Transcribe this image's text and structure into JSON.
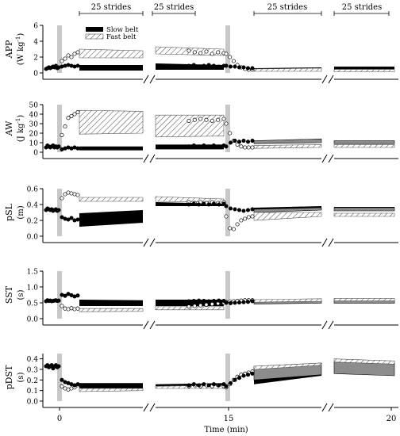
{
  "chart_data": {
    "type": "scatter",
    "xlabel": "Time (min)",
    "x_ticks": [
      {
        "label": "0",
        "value": 0
      },
      {
        "label": "15",
        "value": 15
      },
      {
        "label": "20",
        "value": 20
      }
    ],
    "stride_labels": [
      "25 strides",
      "25 strides",
      "25 strides",
      "25 strides"
    ],
    "legend": {
      "position": "inside first panel, top",
      "entries": [
        {
          "label": "Slow belt",
          "style": "solid black"
        },
        {
          "label": "Fast belt",
          "style": "hatched"
        }
      ]
    },
    "colors": {
      "slow": "#000000",
      "fast_hatch": "#444444",
      "gray_band": "#8c8c8c",
      "split_marker": "#c8c8c8"
    },
    "panels": [
      {
        "id": "app",
        "ylabel": "APP",
        "yunit": "(W kg",
        "yunit_sup": "-1",
        "yunit_close": ")",
        "ylim": [
          0,
          6
        ],
        "yticks": [
          0,
          2,
          4,
          6
        ],
        "tick_labels": [
          "0",
          "2",
          "4",
          "6"
        ],
        "pre_slow": [
          0.5,
          0.6,
          0.7,
          0.6,
          0.7,
          0.8,
          0.7,
          0.9,
          0.6,
          0.7
        ],
        "early_slow": [
          0.8,
          0.9,
          1.0,
          0.9,
          0.8,
          0.9
        ],
        "early_fast": [
          1.5,
          1.8,
          2.2,
          2.0,
          2.4,
          2.6
        ],
        "mid_slow": [
          0.9,
          1.0,
          0.8,
          0.9,
          1.0,
          0.9,
          0.8,
          0.9
        ],
        "mid_fast": [
          2.8,
          2.6,
          2.5,
          2.7,
          2.4,
          2.6,
          2.5
        ],
        "post_slow": [
          0.9,
          0.8,
          0.8,
          0.7,
          0.7,
          0.6,
          0.6
        ],
        "post_fast": [
          2.4,
          2.0,
          1.5,
          1.0,
          0.7,
          0.5,
          0.4,
          0.4
        ],
        "bands": [
          {
            "seg": 1,
            "type": "slow",
            "y0": [
              0.3,
              0.3
            ],
            "y1": [
              1.0,
              1.0
            ]
          },
          {
            "seg": 1,
            "type": "fast",
            "y0": [
              1.9,
              1.9
            ],
            "y1": [
              3.0,
              2.8
            ]
          },
          {
            "seg": 2,
            "type": "slow",
            "y0": [
              0.4,
              0.4
            ],
            "y1": [
              1.2,
              1.0
            ]
          },
          {
            "seg": 2,
            "type": "fast",
            "y0": [
              2.4,
              2.2
            ],
            "y1": [
              3.3,
              3.0
            ]
          },
          {
            "seg": 3,
            "type": "slow",
            "y0": [
              0.3,
              0.3
            ],
            "y1": [
              0.6,
              0.7
            ]
          },
          {
            "seg": 3,
            "type": "fast",
            "y0": [
              0.2,
              0.2
            ],
            "y1": [
              0.5,
              0.6
            ]
          },
          {
            "seg": 4,
            "type": "slow",
            "y0": [
              0.35,
              0.35
            ],
            "y1": [
              0.8,
              0.8
            ]
          },
          {
            "seg": 4,
            "type": "fast",
            "y0": [
              0.15,
              0.15
            ],
            "y1": [
              0.45,
              0.45
            ]
          }
        ]
      },
      {
        "id": "aw",
        "ylabel": "AW",
        "yunit": "(J kg",
        "yunit_sup": "-1",
        "yunit_close": ")",
        "ylim": [
          0,
          50
        ],
        "yticks": [
          0,
          10,
          20,
          30,
          40,
          50
        ],
        "tick_labels": [
          "0",
          "10",
          "20",
          "30",
          "40",
          "50"
        ],
        "pre_slow": [
          5,
          7,
          6,
          5,
          6,
          7,
          5,
          6,
          5,
          6
        ],
        "early_slow": [
          3,
          4,
          5,
          4,
          5,
          4
        ],
        "early_fast": [
          18,
          27,
          36,
          38,
          40,
          42
        ],
        "mid_slow": [
          6,
          7,
          6,
          7,
          6,
          7,
          6,
          7
        ],
        "mid_fast": [
          33,
          34,
          35,
          34,
          33,
          34,
          35
        ],
        "post_slow": [
          6,
          10,
          12,
          11,
          12,
          11,
          12
        ],
        "post_fast": [
          30,
          20,
          12,
          8,
          6,
          5,
          5,
          5
        ],
        "bands": [
          {
            "seg": 1,
            "type": "slow",
            "y0": [
              2,
              2
            ],
            "y1": [
              6,
              6
            ]
          },
          {
            "seg": 1,
            "type": "fast",
            "y0": [
              19,
              20
            ],
            "y1": [
              44,
              43
            ]
          },
          {
            "seg": 2,
            "type": "slow",
            "y0": [
              3,
              3
            ],
            "y1": [
              8,
              8
            ]
          },
          {
            "seg": 2,
            "type": "fast",
            "y0": [
              16,
              17
            ],
            "y1": [
              39,
              39
            ]
          },
          {
            "seg": 3,
            "type": "gray",
            "y0": [
              9,
              10
            ],
            "y1": [
              12,
              14
            ]
          },
          {
            "seg": 3,
            "type": "fast",
            "y0": [
              4,
              5
            ],
            "y1": [
              7,
              8
            ]
          },
          {
            "seg": 4,
            "type": "gray",
            "y0": [
              9,
              9
            ],
            "y1": [
              12,
              12
            ]
          },
          {
            "seg": 4,
            "type": "fast",
            "y0": [
              5,
              5
            ],
            "y1": [
              8,
              8
            ]
          }
        ]
      },
      {
        "id": "psl",
        "ylabel": "pSL",
        "yunit": "(m)",
        "yunit_sup": "",
        "yunit_close": "",
        "ylim": [
          0,
          0.6
        ],
        "yticks": [
          0,
          0.2,
          0.4,
          0.6
        ],
        "tick_labels": [
          "0.0",
          "0.2",
          "0.4",
          "0.6"
        ],
        "pre_slow": [
          0.33,
          0.35,
          0.34,
          0.33,
          0.34,
          0.32,
          0.33,
          0.34,
          0.32,
          0.33
        ],
        "early_slow": [
          0.24,
          0.22,
          0.21,
          0.23,
          0.2,
          0.21
        ],
        "early_fast": [
          0.48,
          0.53,
          0.55,
          0.54,
          0.53,
          0.52
        ],
        "mid_slow": [
          0.4,
          0.41,
          0.4,
          0.41,
          0.4,
          0.41,
          0.4,
          0.41
        ],
        "mid_fast": [
          0.43,
          0.42,
          0.43,
          0.42,
          0.43,
          0.42,
          0.43
        ],
        "post_slow": [
          0.38,
          0.35,
          0.34,
          0.33,
          0.32,
          0.33,
          0.34
        ],
        "post_fast": [
          0.25,
          0.1,
          0.09,
          0.15,
          0.2,
          0.22,
          0.24,
          0.25
        ],
        "bands": [
          {
            "seg": 1,
            "type": "slow",
            "y0": [
              0.12,
              0.17
            ],
            "y1": [
              0.29,
              0.33
            ]
          },
          {
            "seg": 1,
            "type": "fast",
            "y0": [
              0.44,
              0.44
            ],
            "y1": [
              0.49,
              0.49
            ]
          },
          {
            "seg": 2,
            "type": "slow",
            "y0": [
              0.38,
              0.38
            ],
            "y1": [
              0.43,
              0.41
            ]
          },
          {
            "seg": 2,
            "type": "fast",
            "y0": [
              0.44,
              0.43
            ],
            "y1": [
              0.5,
              0.47
            ]
          },
          {
            "seg": 3,
            "type": "slow",
            "y0": [
              0.33,
              0.35
            ],
            "y1": [
              0.36,
              0.38
            ]
          },
          {
            "seg": 3,
            "type": "gray",
            "y0": [
              0.3,
              0.33
            ],
            "y1": [
              0.34,
              0.36
            ]
          },
          {
            "seg": 3,
            "type": "fast",
            "y0": [
              0.2,
              0.25
            ],
            "y1": [
              0.3,
              0.3
            ]
          },
          {
            "seg": 4,
            "type": "slow",
            "y0": [
              0.34,
              0.34
            ],
            "y1": [
              0.37,
              0.37
            ]
          },
          {
            "seg": 4,
            "type": "gray",
            "y0": [
              0.32,
              0.32
            ],
            "y1": [
              0.36,
              0.36
            ]
          },
          {
            "seg": 4,
            "type": "fast",
            "y0": [
              0.25,
              0.25
            ],
            "y1": [
              0.29,
              0.29
            ]
          }
        ]
      },
      {
        "id": "sst",
        "ylabel": "SST",
        "yunit": "(s)",
        "yunit_sup": "",
        "yunit_close": "",
        "ylim": [
          0,
          1.5
        ],
        "yticks": [
          0,
          0.5,
          1.0,
          1.5
        ],
        "tick_labels": [
          "0.0",
          "0.5",
          "1.0",
          "1.5"
        ],
        "pre_slow": [
          0.55,
          0.58,
          0.56,
          0.57,
          0.55,
          0.56,
          0.57,
          0.58,
          0.56,
          0.57
        ],
        "early_slow": [
          0.75,
          0.72,
          0.78,
          0.74,
          0.7,
          0.73
        ],
        "early_fast": [
          0.4,
          0.32,
          0.3,
          0.33,
          0.3,
          0.32
        ],
        "mid_slow": [
          0.55,
          0.56,
          0.57,
          0.56,
          0.55,
          0.56,
          0.57,
          0.56
        ],
        "mid_fast": [
          0.38,
          0.4,
          0.42,
          0.44,
          0.46,
          0.48,
          0.5
        ],
        "post_slow": [
          0.5,
          0.49,
          0.5,
          0.51,
          0.52,
          0.53,
          0.55
        ],
        "post_fast": [
          0.52,
          0.54,
          0.55,
          0.56,
          0.57,
          0.58,
          0.58,
          0.58
        ],
        "bands": [
          {
            "seg": 1,
            "type": "slow",
            "y0": [
              0.4,
              0.4
            ],
            "y1": [
              0.6,
              0.58
            ]
          },
          {
            "seg": 1,
            "type": "fast",
            "y0": [
              0.22,
              0.23
            ],
            "y1": [
              0.32,
              0.32
            ]
          },
          {
            "seg": 2,
            "type": "slow",
            "y0": [
              0.4,
              0.4
            ],
            "y1": [
              0.6,
              0.6
            ]
          },
          {
            "seg": 2,
            "type": "fast",
            "y0": [
              0.28,
              0.28
            ],
            "y1": [
              0.38,
              0.38
            ]
          },
          {
            "seg": 3,
            "type": "gray",
            "y0": [
              0.46,
              0.49
            ],
            "y1": [
              0.55,
              0.58
            ]
          },
          {
            "seg": 3,
            "type": "fast",
            "y0": [
              0.52,
              0.55
            ],
            "y1": [
              0.6,
              0.63
            ]
          },
          {
            "seg": 4,
            "type": "gray",
            "y0": [
              0.49,
              0.49
            ],
            "y1": [
              0.58,
              0.58
            ]
          },
          {
            "seg": 4,
            "type": "fast",
            "y0": [
              0.56,
              0.56
            ],
            "y1": [
              0.64,
              0.64
            ]
          }
        ]
      },
      {
        "id": "pdst",
        "ylabel": "pDST",
        "yunit": "(s)",
        "yunit_sup": "",
        "yunit_close": "",
        "ylim": [
          0,
          0.45
        ],
        "yticks": [
          0,
          0.1,
          0.2,
          0.3,
          0.4
        ],
        "tick_labels": [
          "0.0",
          "0.1",
          "0.2",
          "0.3",
          "0.4"
        ],
        "pre_slow": [
          0.33,
          0.34,
          0.32,
          0.33,
          0.34,
          0.31,
          0.33,
          0.34,
          0.32,
          0.33
        ],
        "early_slow": [
          0.2,
          0.18,
          0.17,
          0.16,
          0.15,
          0.16
        ],
        "early_fast": [
          0.14,
          0.12,
          0.11,
          0.12,
          0.13,
          0.15
        ],
        "mid_slow": [
          0.15,
          0.16,
          0.15,
          0.16,
          0.15,
          0.16,
          0.15,
          0.16
        ],
        "mid_fast": [
          0.14,
          0.15,
          0.14,
          0.15,
          0.14,
          0.15,
          0.14
        ],
        "post_slow": [
          0.14,
          0.17,
          0.2,
          0.22,
          0.24,
          0.25,
          0.26
        ],
        "post_fast": [
          0.13,
          0.16,
          0.2,
          0.23,
          0.25,
          0.26,
          0.27,
          0.28
        ],
        "bands": [
          {
            "seg": 1,
            "type": "slow",
            "y0": [
              0.11,
              0.12
            ],
            "y1": [
              0.17,
              0.17
            ]
          },
          {
            "seg": 1,
            "type": "fast",
            "y0": [
              0.09,
              0.1
            ],
            "y1": [
              0.12,
              0.12
            ]
          },
          {
            "seg": 2,
            "type": "slow",
            "y0": [
              0.12,
              0.13
            ],
            "y1": [
              0.16,
              0.17
            ]
          },
          {
            "seg": 2,
            "type": "fast",
            "y0": [
              0.12,
              0.12
            ],
            "y1": [
              0.14,
              0.15
            ]
          },
          {
            "seg": 3,
            "type": "slow",
            "y0": [
              0.16,
              0.24
            ],
            "y1": [
              0.28,
              0.3
            ]
          },
          {
            "seg": 3,
            "type": "gray",
            "y0": [
              0.2,
              0.25
            ],
            "y1": [
              0.33,
              0.36
            ]
          },
          {
            "seg": 3,
            "type": "fast",
            "y0": [
              0.3,
              0.34
            ],
            "y1": [
              0.33,
              0.36
            ]
          },
          {
            "seg": 4,
            "type": "gray",
            "y0": [
              0.26,
              0.24
            ],
            "y1": [
              0.37,
              0.36
            ]
          },
          {
            "seg": 4,
            "type": "fast",
            "y0": [
              0.37,
              0.35
            ],
            "y1": [
              0.4,
              0.38
            ]
          }
        ]
      }
    ]
  }
}
